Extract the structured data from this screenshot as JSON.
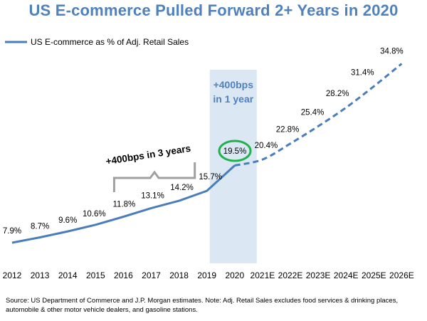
{
  "chart_data": {
    "type": "line",
    "title": "US E-commerce Pulled Forward 2+ Years in 2020",
    "xlabel": "",
    "ylabel": "",
    "categories": [
      "2012",
      "2013",
      "2014",
      "2015",
      "2016",
      "2017",
      "2018",
      "2019",
      "2020",
      "2021E",
      "2022E",
      "2023E",
      "2024E",
      "2025E",
      "2026E"
    ],
    "legend": {
      "position": "top-left",
      "entries": [
        "US E-commerce as % of Adj. Retail Sales"
      ]
    },
    "series": [
      {
        "name": "US E-commerce as % of Adj. Retail Sales",
        "color": "#4a7ebb",
        "actual": [
          7.9,
          8.7,
          9.6,
          10.6,
          11.8,
          13.1,
          14.2,
          15.7,
          19.5
        ],
        "estimated": [
          20.4,
          22.8,
          25.4,
          28.2,
          31.4,
          34.8
        ],
        "labels": [
          "7.9%",
          "8.7%",
          "9.6%",
          "10.6%",
          "11.8%",
          "13.1%",
          "14.2%",
          "15.7%",
          "19.5%",
          "20.4%",
          "22.8%",
          "25.4%",
          "28.2%",
          "31.4%",
          "34.8%"
        ]
      }
    ],
    "ylim": [
      7.9,
      34.8
    ],
    "grid": false,
    "highlight": {
      "category": "2020",
      "label_line1": "+400bps",
      "label_line2": "in 1 year",
      "color": "#dbe8f4"
    },
    "circled_value": {
      "label": "19.5%",
      "color": "#22b14c"
    },
    "bracket_annotation": {
      "text": "+400bps in 3 years",
      "from": "2016",
      "to": "2019"
    }
  },
  "source_note": "Source: US Department of Commerce and J.P. Morgan estimates. Note: Adj. Retail Sales excludes food services & drinking places, automobile & other motor vehicle dealers, and gasoline stations."
}
